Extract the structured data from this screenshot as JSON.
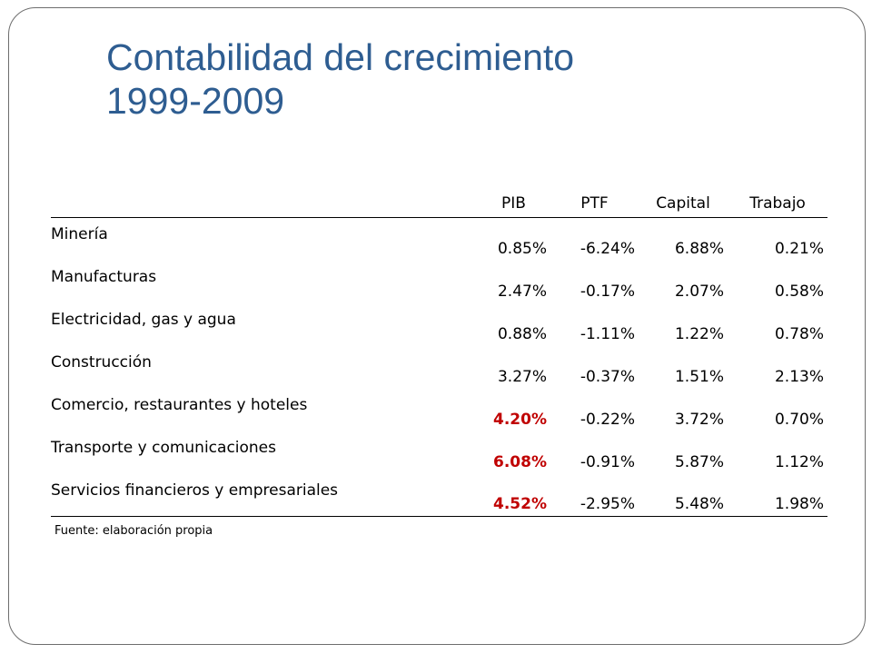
{
  "title": {
    "line1": "Contabilidad del crecimiento",
    "line2": "1999-2009"
  },
  "table": {
    "headers": [
      "",
      "PIB",
      "PTF",
      "Capital",
      "Trabajo"
    ],
    "rows": [
      {
        "sector": "Minería",
        "pib": "0.85%",
        "ptf": "-6.24%",
        "capital": "6.88%",
        "trabajo": "0.21%",
        "pib_highlight": false
      },
      {
        "sector": "Manufacturas",
        "pib": "2.47%",
        "ptf": "-0.17%",
        "capital": "2.07%",
        "trabajo": "0.58%",
        "pib_highlight": false
      },
      {
        "sector": "Electricidad, gas y agua",
        "pib": "0.88%",
        "ptf": "-1.11%",
        "capital": "1.22%",
        "trabajo": "0.78%",
        "pib_highlight": false
      },
      {
        "sector": "Construcción",
        "pib": "3.27%",
        "ptf": "-0.37%",
        "capital": "1.51%",
        "trabajo": "2.13%",
        "pib_highlight": false
      },
      {
        "sector": "Comercio, restaurantes y hoteles",
        "pib": "4.20%",
        "ptf": "-0.22%",
        "capital": "3.72%",
        "trabajo": "0.70%",
        "pib_highlight": true
      },
      {
        "sector": "Transporte y comunicaciones",
        "pib": "6.08%",
        "ptf": "-0.91%",
        "capital": "5.87%",
        "trabajo": "1.12%",
        "pib_highlight": true
      },
      {
        "sector": "Servicios financieros y empresariales",
        "pib": "4.52%",
        "ptf": "-2.95%",
        "capital": "5.48%",
        "trabajo": "1.98%",
        "pib_highlight": true
      }
    ]
  },
  "source": "Fuente: elaboración propia",
  "colors": {
    "title": "#2e5d91",
    "highlight": "#c00000",
    "border": "#6e6e6e"
  }
}
